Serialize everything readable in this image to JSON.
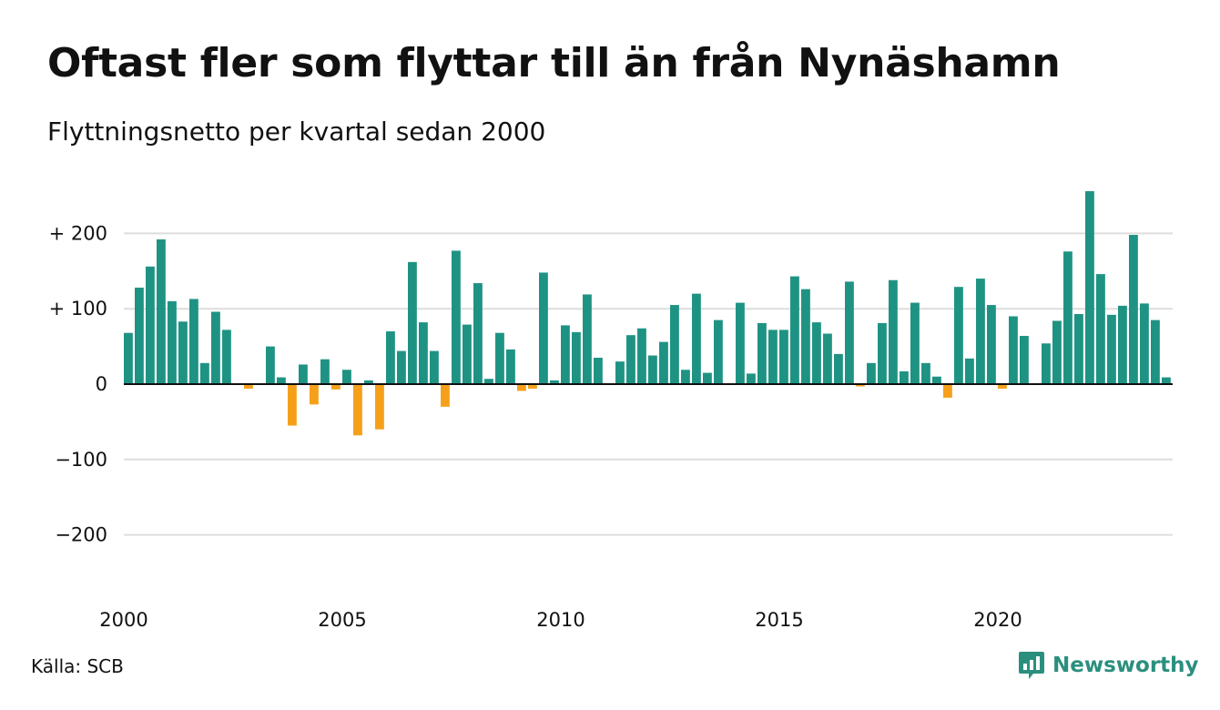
{
  "header": {
    "title": "Oftast fler som flyttar till än från Nynäshamn",
    "subtitle": "Flyttningsnetto per kvartal sedan 2000"
  },
  "footer": {
    "source": "Källa: SCB",
    "brand": "Newsworthy",
    "brand_icon": "newsworthy-logo-icon"
  },
  "colors": {
    "positive": "#1f9383",
    "negative": "#f6a01a",
    "grid": "#dddddd",
    "baseline": "#111111",
    "brand": "#2b8f7e"
  },
  "chart_data": {
    "type": "bar",
    "title": "Oftast fler som flyttar till än från Nynäshamn",
    "subtitle": "Flyttningsnetto per kvartal sedan 2000",
    "xlabel": "",
    "ylabel": "",
    "ylim": [
      -250,
      260
    ],
    "grid": true,
    "y_ticks": [
      {
        "value": 200,
        "label": "+ 200"
      },
      {
        "value": 100,
        "label": "+ 100"
      },
      {
        "value": 0,
        "label": "0"
      },
      {
        "value": -100,
        "label": "−100"
      },
      {
        "value": -200,
        "label": "−200"
      }
    ],
    "x_ticks": [
      {
        "year": 2000,
        "label": "2000"
      },
      {
        "year": 2005,
        "label": "2005"
      },
      {
        "year": 2010,
        "label": "2010"
      },
      {
        "year": 2015,
        "label": "2015"
      },
      {
        "year": 2020,
        "label": "2020"
      }
    ],
    "start_year": 2000,
    "periods_per_year": 4,
    "values": [
      68,
      128,
      156,
      192,
      110,
      83,
      113,
      28,
      96,
      72,
      0,
      -6,
      0,
      50,
      9,
      -55,
      26,
      -27,
      33,
      -7,
      19,
      -68,
      5,
      -60,
      70,
      44,
      162,
      82,
      44,
      -30,
      177,
      79,
      134,
      7,
      68,
      46,
      -9,
      -6,
      148,
      5,
      78,
      69,
      119,
      35,
      0,
      30,
      65,
      74,
      38,
      56,
      105,
      19,
      120,
      15,
      85,
      0,
      108,
      14,
      81,
      72,
      72,
      143,
      126,
      82,
      67,
      40,
      136,
      -3,
      28,
      81,
      138,
      17,
      108,
      28,
      10,
      -18,
      129,
      34,
      140,
      105,
      -6,
      90,
      64,
      0,
      54,
      84,
      176,
      93,
      256,
      146,
      92,
      104,
      198,
      107,
      85,
      9
    ]
  }
}
